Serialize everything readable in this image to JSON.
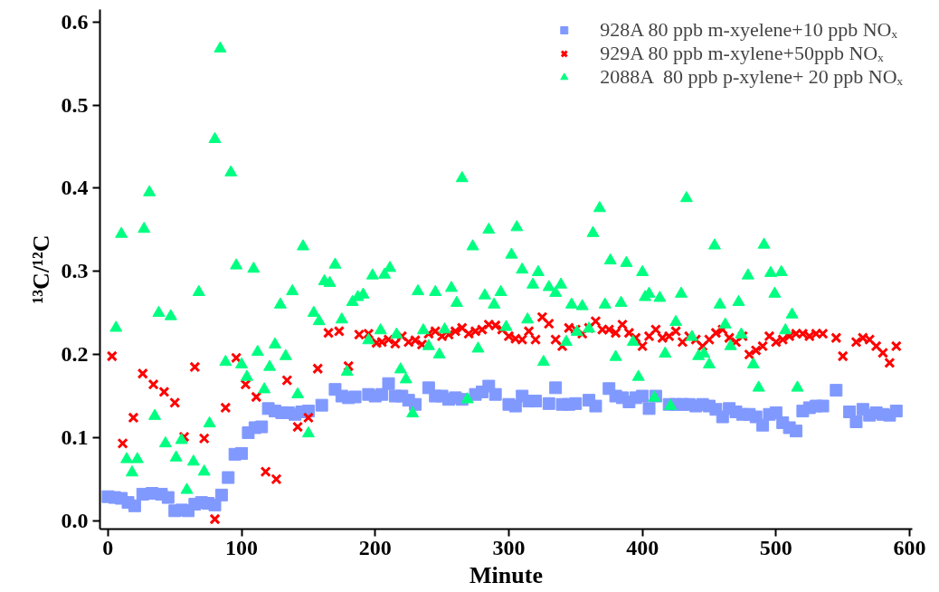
{
  "chart_data": {
    "type": "scatter",
    "xlabel": "Minute",
    "ylabel": "¹³C/¹²C",
    "xlim": [
      -6,
      602
    ],
    "ylim": [
      -0.01,
      0.615
    ],
    "xticks": [
      0,
      100,
      200,
      300,
      400,
      500,
      600
    ],
    "yticks": [
      {
        "value": 0,
        "label": "0.0"
      },
      0.1,
      0.2,
      0.3,
      0.4,
      0.5,
      0.6
    ],
    "grid": false,
    "legend": "top right",
    "series": [
      {
        "name": "928A 80 ppb m-xyelene+10 ppb NOₓ",
        "color": "#8099ff",
        "marker": "square",
        "x": [
          0,
          5,
          10,
          15,
          20,
          26,
          33,
          40,
          45,
          50,
          55,
          60,
          65,
          70,
          75,
          80,
          85,
          90,
          95,
          100,
          105,
          110,
          115,
          120,
          125,
          130,
          135,
          140,
          145,
          150,
          160,
          170,
          175,
          180,
          185,
          195,
          200,
          205,
          210,
          215,
          220,
          225,
          230,
          240,
          245,
          250,
          255,
          260,
          265,
          275,
          280,
          285,
          290,
          300,
          305,
          310,
          315,
          320,
          330,
          335,
          340,
          345,
          350,
          360,
          365,
          375,
          380,
          385,
          390,
          395,
          400,
          405,
          410,
          420,
          425,
          430,
          435,
          440,
          445,
          450,
          455,
          460,
          465,
          470,
          475,
          480,
          485,
          490,
          495,
          500,
          505,
          510,
          515,
          520,
          525,
          530,
          535,
          545,
          555,
          560,
          565,
          570,
          575,
          580,
          585,
          590
        ],
        "values": [
          0.029,
          0.028,
          0.027,
          0.022,
          0.018,
          0.032,
          0.033,
          0.032,
          0.028,
          0.012,
          0.013,
          0.012,
          0.02,
          0.022,
          0.021,
          0.019,
          0.031,
          0.052,
          0.08,
          0.081,
          0.106,
          0.112,
          0.113,
          0.135,
          0.132,
          0.13,
          0.13,
          0.128,
          0.131,
          0.132,
          0.139,
          0.158,
          0.15,
          0.148,
          0.149,
          0.152,
          0.15,
          0.152,
          0.165,
          0.15,
          0.15,
          0.145,
          0.14,
          0.16,
          0.15,
          0.15,
          0.146,
          0.148,
          0.146,
          0.152,
          0.155,
          0.162,
          0.152,
          0.14,
          0.138,
          0.15,
          0.144,
          0.144,
          0.141,
          0.16,
          0.14,
          0.14,
          0.141,
          0.145,
          0.138,
          0.159,
          0.15,
          0.148,
          0.143,
          0.148,
          0.15,
          0.135,
          0.15,
          0.14,
          0.14,
          0.14,
          0.14,
          0.138,
          0.14,
          0.138,
          0.134,
          0.125,
          0.135,
          0.131,
          0.128,
          0.128,
          0.125,
          0.115,
          0.128,
          0.13,
          0.118,
          0.112,
          0.108,
          0.132,
          0.136,
          0.138,
          0.138,
          0.157,
          0.131,
          0.119,
          0.134,
          0.127,
          0.13,
          0.128,
          0.127,
          0.132
        ]
      },
      {
        "name": "929A 80 ppb m-xylene+50ppb NOₓ",
        "color": "#ff0000",
        "marker": "cross",
        "x": [
          3,
          11,
          19,
          26,
          34,
          42,
          50,
          57,
          65,
          72,
          80,
          88,
          96,
          103,
          111,
          118,
          126,
          134,
          142,
          150,
          157,
          165,
          173,
          180,
          188,
          195,
          201,
          205,
          210,
          215,
          220,
          225,
          230,
          235,
          240,
          245,
          250,
          255,
          260,
          265,
          270,
          275,
          280,
          285,
          290,
          295,
          300,
          305,
          310,
          315,
          320,
          325,
          330,
          335,
          340,
          345,
          350,
          355,
          360,
          365,
          370,
          375,
          380,
          385,
          390,
          395,
          400,
          405,
          410,
          415,
          420,
          425,
          430,
          435,
          440,
          445,
          450,
          455,
          460,
          465,
          470,
          475,
          480,
          485,
          490,
          495,
          500,
          505,
          510,
          515,
          520,
          525,
          530,
          535,
          545,
          550,
          560,
          565,
          570,
          575,
          580,
          585,
          590
        ],
        "values": [
          0.198,
          0.093,
          0.124,
          0.177,
          0.164,
          0.155,
          0.142,
          0.101,
          0.185,
          0.099,
          0.002,
          0.136,
          0.196,
          0.164,
          0.149,
          0.059,
          0.05,
          0.169,
          0.113,
          0.124,
          0.183,
          0.226,
          0.228,
          0.186,
          0.224,
          0.225,
          0.214,
          0.215,
          0.218,
          0.213,
          0.222,
          0.215,
          0.217,
          0.212,
          0.225,
          0.228,
          0.222,
          0.224,
          0.228,
          0.232,
          0.225,
          0.228,
          0.23,
          0.236,
          0.235,
          0.23,
          0.222,
          0.219,
          0.218,
          0.228,
          0.218,
          0.245,
          0.237,
          0.218,
          0.21,
          0.232,
          0.23,
          0.225,
          0.232,
          0.24,
          0.23,
          0.23,
          0.226,
          0.236,
          0.226,
          0.22,
          0.21,
          0.222,
          0.23,
          0.22,
          0.222,
          0.228,
          0.215,
          0.222,
          0.218,
          0.21,
          0.218,
          0.226,
          0.23,
          0.22,
          0.215,
          0.222,
          0.2,
          0.205,
          0.21,
          0.222,
          0.215,
          0.218,
          0.222,
          0.225,
          0.225,
          0.222,
          0.225,
          0.225,
          0.22,
          0.198,
          0.215,
          0.22,
          0.218,
          0.21,
          0.202,
          0.19,
          0.21
        ]
      },
      {
        "name": "2088A  80 ppb p-xylene+ 20 ppb NOₓ",
        "color": "#00ff80",
        "marker": "triangle",
        "x": [
          6,
          10,
          14,
          18,
          22,
          27,
          31,
          35,
          38,
          43,
          47,
          51,
          55,
          59,
          64,
          68,
          72,
          76,
          80,
          84,
          88,
          92,
          96,
          100,
          104,
          109,
          112,
          117,
          121,
          125,
          129,
          133,
          138,
          142,
          146,
          150,
          154,
          158,
          162,
          166,
          170,
          175,
          179,
          183,
          187,
          191,
          195,
          198,
          204,
          207,
          211,
          216,
          219,
          223,
          228,
          232,
          236,
          240,
          245,
          248,
          252,
          257,
          261,
          265,
          269,
          273,
          277,
          282,
          285,
          289,
          294,
          298,
          302,
          306,
          310,
          314,
          318,
          322,
          326,
          330,
          335,
          339,
          343,
          347,
          351,
          355,
          360,
          363,
          368,
          372,
          376,
          380,
          384,
          388,
          393,
          397,
          400,
          402,
          405,
          409,
          413,
          417,
          421,
          425,
          429,
          433,
          437,
          442,
          446,
          450,
          454,
          458,
          462,
          466,
          472,
          474,
          479,
          483,
          487,
          491,
          496,
          499,
          504,
          507,
          512,
          516
        ],
        "values": [
          0.232,
          0.345,
          0.074,
          0.058,
          0.074,
          0.351,
          0.395,
          0.126,
          0.25,
          0.093,
          0.246,
          0.076,
          0.097,
          0.037,
          0.071,
          0.275,
          0.059,
          0.117,
          0.459,
          0.568,
          0.191,
          0.419,
          0.307,
          0.188,
          0.173,
          0.303,
          0.203,
          0.158,
          0.185,
          0.212,
          0.26,
          0.198,
          0.276,
          0.152,
          0.33,
          0.105,
          0.25,
          0.24,
          0.288,
          0.286,
          0.308,
          0.242,
          0.179,
          0.263,
          0.269,
          0.272,
          0.217,
          0.295,
          0.229,
          0.296,
          0.304,
          0.224,
          0.182,
          0.17,
          0.129,
          0.276,
          0.229,
          0.21,
          0.275,
          0.2,
          0.23,
          0.28,
          0.262,
          0.412,
          0.146,
          0.33,
          0.207,
          0.271,
          0.35,
          0.26,
          0.275,
          0.233,
          0.32,
          0.353,
          0.302,
          0.242,
          0.284,
          0.299,
          0.191,
          0.281,
          0.274,
          0.284,
          0.215,
          0.26,
          0.227,
          0.258,
          0.231,
          0.346,
          0.376,
          0.26,
          0.313,
          0.197,
          0.262,
          0.31,
          0.215,
          0.173,
          0.299,
          0.269,
          0.273,
          0.148,
          0.268,
          0.201,
          0.138,
          0.239,
          0.273,
          0.388,
          0.221,
          0.198,
          0.201,
          0.188,
          0.331,
          0.26,
          0.236,
          0.21,
          0.263,
          0.224,
          0.295,
          0.188,
          0.16,
          0.332,
          0.298,
          0.273,
          0.299,
          0.229,
          0.248,
          0.16
        ]
      }
    ]
  }
}
